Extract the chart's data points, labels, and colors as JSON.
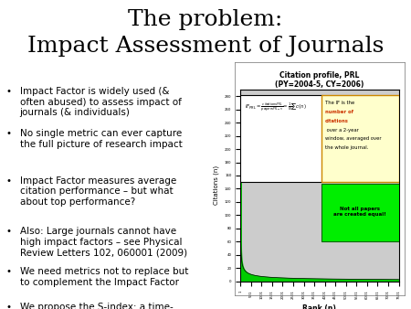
{
  "title_line1": "The problem:",
  "title_line2": "Impact Assessment of Journals",
  "title_fontsize": 18,
  "bullet_points": [
    {
      "text": "Impact Factor is widely used (&\noften abused) to assess impact of\njournals (& individuals)",
      "underline": false
    },
    {
      "text": "No single metric can ever capture\nthe full picture of research impact",
      "underline": false
    },
    {
      "text": "Impact Factor measures average\ncitation performance – but what\nabout top performance?",
      "underline": true
    },
    {
      "text": "Also: Large journals cannot have\nhigh impact factors – see Physical\nReview Letters 102, 060001 (2009)",
      "underline": false
    },
    {
      "text": "We need metrics not to replace but\nto complement the Impact Factor",
      "underline": false
    },
    {
      "text": "We propose the S-index: a time-\nsensitive H-index-like metric for\njournals",
      "underline": false
    }
  ],
  "bullet_fontsize": 7.5,
  "chart_title": "Citation profile, PRL\n(PY=2004-5, CY=2006)",
  "chart_xlabel": "Rank (n)",
  "chart_ylabel": "Citations (n)",
  "background_color": "#ffffff",
  "chart_bg": "#cccccc",
  "green_fill": "#00cc00",
  "annotation1_bg": "#ffffcc",
  "annotation1_border": "#cc8800",
  "annotation2_text": "Not all papers\nare created equal!",
  "annotation2_bg": "#00ee00",
  "annotation2_border": "#006600"
}
